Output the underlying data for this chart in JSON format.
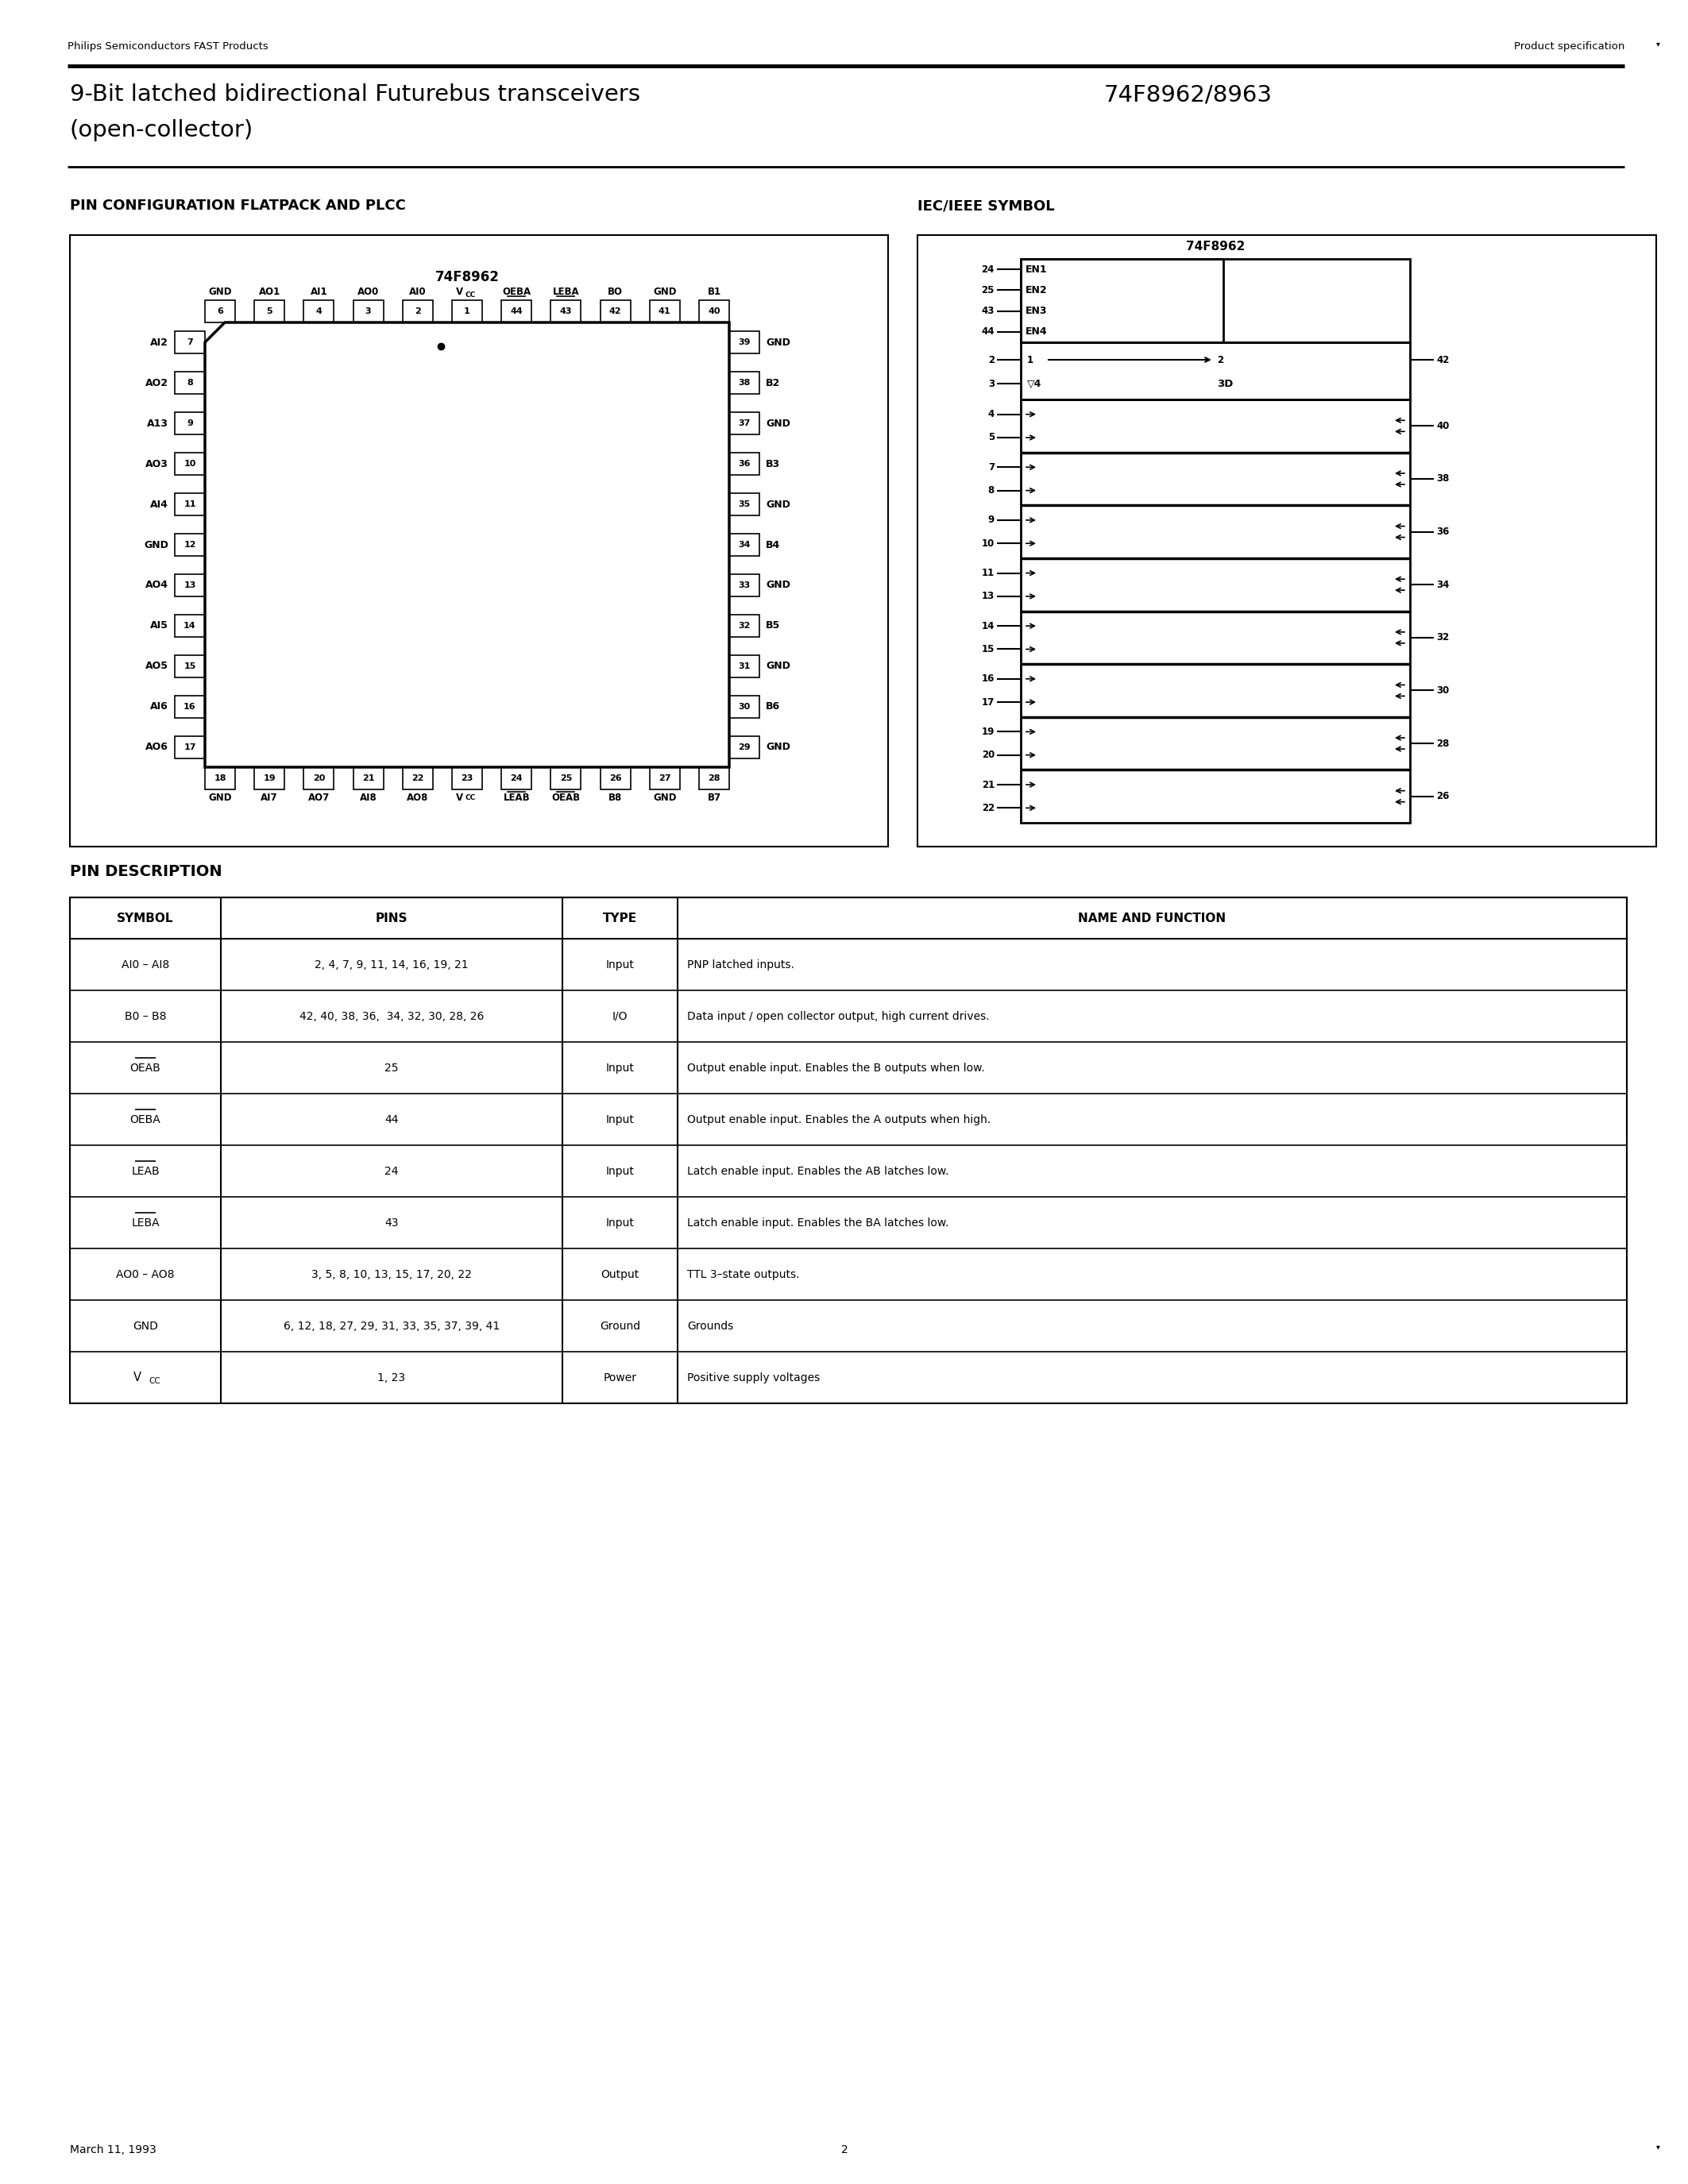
{
  "page_header_left": "Philips Semiconductors FAST Products",
  "page_header_right": "Product specification",
  "title_line1": "9-Bit latched bidirectional Futurebus transceivers",
  "title_line2": "(open-collector)",
  "title_part": "74F8962/8963",
  "section1_title": "PIN CONFIGURATION FLATPACK AND PLCC",
  "section2_title": "IEC/IEEE SYMBOL",
  "ic_label": "74F8962",
  "ic_label2": "74F8962",
  "pin_desc_title": "PIN DESCRIPTION",
  "table_headers": [
    "SYMBOL",
    "PINS",
    "TYPE",
    "NAME AND FUNCTION"
  ],
  "table_rows": [
    [
      "AI0 – AI8",
      "2, 4, 7, 9, 11, 14, 16, 19, 21",
      "Input",
      "PNP latched inputs."
    ],
    [
      "B0 – B8",
      "42, 40, 38, 36,  34, 32, 30, 28, 26",
      "I/O",
      "Data input / open collector output, high current drives."
    ],
    [
      "OEAB",
      "25",
      "Input",
      "Output enable input. Enables the B outputs when low."
    ],
    [
      "OEBA",
      "44",
      "Input",
      "Output enable input. Enables the A outputs when high."
    ],
    [
      "LEAB",
      "24",
      "Input",
      "Latch enable input. Enables the AB latches low."
    ],
    [
      "LEBA",
      "43",
      "Input",
      "Latch enable input. Enables the BA latches low."
    ],
    [
      "AO0 – AO8",
      "3, 5, 8, 10, 13, 15, 17, 20, 22",
      "Output",
      "TTL 3–state outputs."
    ],
    [
      "GND",
      "6, 12, 18, 27, 29, 31, 33, 35, 37, 39, 41",
      "Ground",
      "Grounds"
    ],
    [
      "VCC",
      "1, 23",
      "Power",
      "Positive supply voltages"
    ]
  ],
  "overline_syms": [
    "OEAB",
    "OEBA",
    "LEAB",
    "LEBA"
  ],
  "footer_left": "March 11, 1993",
  "footer_page": "2",
  "bg_color": "#ffffff"
}
